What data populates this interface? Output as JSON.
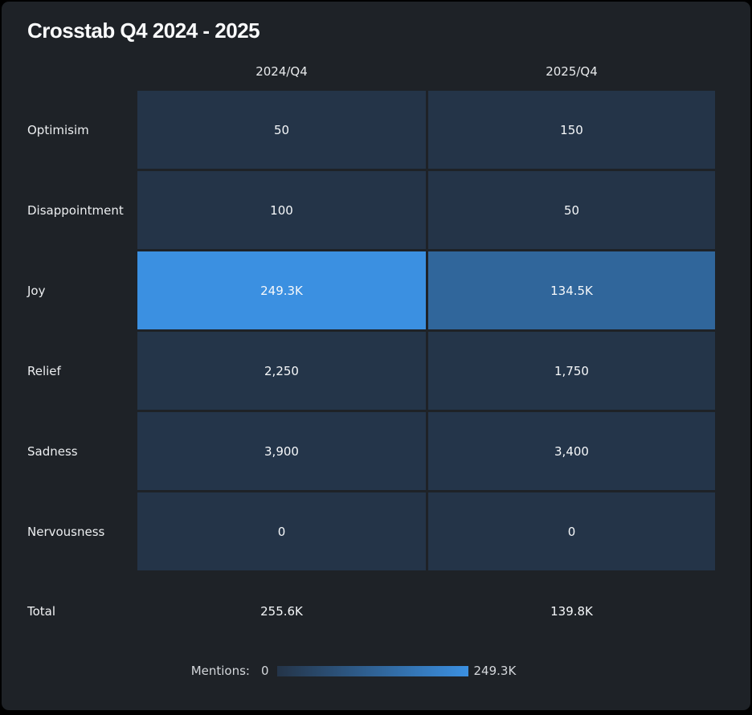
{
  "title": "Crosstab Q4 2024 - 2025",
  "columns": [
    "2024/Q4",
    "2025/Q4"
  ],
  "total": {
    "label": "Total",
    "labels": [
      "255.6K",
      "139.8K"
    ]
  },
  "legend": {
    "label": "Mentions:",
    "min_label": "0",
    "max_label": "249.3K"
  },
  "colors": {
    "page_background": "#1e2227",
    "outer_border": "#000000",
    "cell_min": "#243448",
    "cell_max": "#3b90e1",
    "cell_text": "#f6f8fa"
  },
  "chart_data": {
    "type": "heatmap",
    "title": "Crosstab Q4 2024 - 2025",
    "x_categories": [
      "2024/Q4",
      "2025/Q4"
    ],
    "y_categories": [
      "Optimisim",
      "Disappointment",
      "Joy",
      "Relief",
      "Sadness",
      "Nervousness"
    ],
    "values": [
      [
        50,
        150
      ],
      [
        100,
        50
      ],
      [
        249300,
        134500
      ],
      [
        2250,
        1750
      ],
      [
        3900,
        3400
      ],
      [
        0,
        0
      ]
    ],
    "value_labels": [
      [
        "50",
        "150"
      ],
      [
        "100",
        "50"
      ],
      [
        "249.3K",
        "134.5K"
      ],
      [
        "2,250",
        "1,750"
      ],
      [
        "3,900",
        "3,400"
      ],
      [
        "0",
        "0"
      ]
    ],
    "totals": {
      "values": [
        255600,
        139800
      ],
      "labels": [
        "255.6K",
        "139.8K"
      ]
    },
    "colorbar": {
      "label": "Mentions:",
      "min": 0,
      "max": 249300,
      "min_label": "0",
      "max_label": "249.3K",
      "min_color": "#243448",
      "max_color": "#3b90e1"
    },
    "legend_position": "bottom",
    "grid": false
  }
}
